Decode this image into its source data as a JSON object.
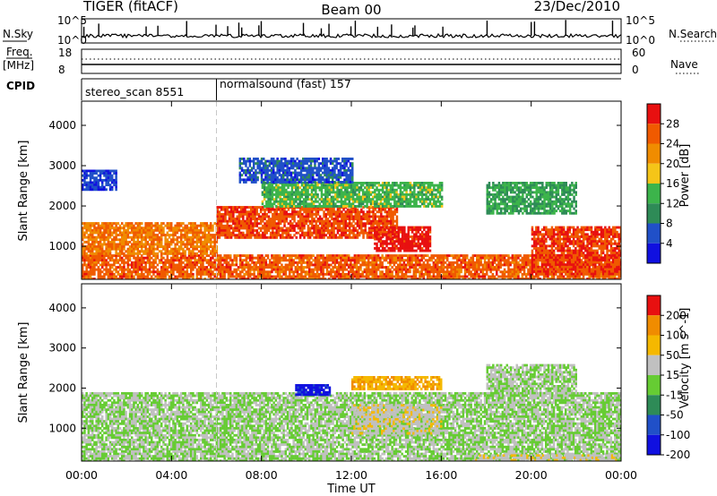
{
  "header": {
    "radar": "TIGER (fitACF)",
    "beam": "Beam 00",
    "date": "23/Dec/2010"
  },
  "strip_labels": {
    "nsky": "N.Sky",
    "nsearch": "N.Search",
    "freq_line1": "Freq.",
    "freq_line2": "[MHz]",
    "nave": "Nave",
    "cpid": "CPID"
  },
  "strip_ticks": {
    "noise_left": [
      "10^5",
      "10^0"
    ],
    "noise_right": [
      "10^5",
      "10^0"
    ],
    "freq_left": [
      "18",
      "8"
    ],
    "nave_right": [
      "60",
      "0"
    ]
  },
  "cpid_segments": [
    {
      "label": "stereo_scan 8551",
      "start_hour": 0,
      "end_hour": 6
    },
    {
      "label": "normalsound (fast) 157",
      "start_hour": 6,
      "end_hour": 24
    }
  ],
  "colors": {
    "power_scale": [
      "#1010e0",
      "#2050c8",
      "#2e8b57",
      "#3cb44b",
      "#f5c518",
      "#f08c00",
      "#f05a00",
      "#e81010"
    ],
    "velocity_scale": [
      "#1010e0",
      "#2050c8",
      "#2e8b57",
      "#66cc33",
      "#c0c0c0",
      "#f5b800",
      "#f08c00",
      "#e81010"
    ],
    "ground_scatter": "#c0c0c0"
  },
  "chart_data": [
    {
      "type": "heatmap",
      "panel": "power",
      "ylabel": "Slant Range [km]",
      "xlim": [
        0,
        24
      ],
      "ylim": [
        180,
        4600
      ],
      "yticks": [
        "1000",
        "2000",
        "3000",
        "4000"
      ],
      "colorbar": {
        "label": "Power [dB]",
        "ticks": [
          "4",
          "8",
          "12",
          "16",
          "20",
          "24",
          "28"
        ],
        "range": [
          0,
          32
        ]
      },
      "regions": [
        {
          "t0": 0,
          "t1": 24,
          "r0": 180,
          "r1": 800,
          "value": 26
        },
        {
          "t0": 0,
          "t1": 6,
          "r0": 800,
          "r1": 1600,
          "value": 24
        },
        {
          "t0": 6,
          "t1": 14,
          "r0": 1200,
          "r1": 2000,
          "value": 27
        },
        {
          "t0": 8,
          "t1": 16,
          "r0": 2000,
          "r1": 2600,
          "value": 14
        },
        {
          "t0": 13,
          "t1": 15.5,
          "r0": 900,
          "r1": 1500,
          "value": 30
        },
        {
          "t0": 7,
          "t1": 12,
          "r0": 2600,
          "r1": 3200,
          "value": 6
        },
        {
          "t0": 18,
          "t1": 22,
          "r0": 1800,
          "r1": 2600,
          "value": 12
        },
        {
          "t0": 20,
          "t1": 24,
          "r0": 300,
          "r1": 1500,
          "value": 28
        },
        {
          "t0": 0,
          "t1": 1.5,
          "r0": 2400,
          "r1": 2900,
          "value": 5
        }
      ]
    },
    {
      "type": "heatmap",
      "panel": "velocity",
      "xlabel": "Time UT",
      "ylabel": "Slant Range [km]",
      "xlim": [
        0,
        24
      ],
      "ylim": [
        180,
        4600
      ],
      "xticks": [
        "00:00",
        "04:00",
        "08:00",
        "12:00",
        "16:00",
        "20:00",
        "00:00"
      ],
      "yticks": [
        "1000",
        "2000",
        "3000",
        "4000"
      ],
      "colorbar": {
        "label": "Velocity [m s^-1]",
        "ticks": [
          "200",
          "100",
          "50",
          "15",
          "-15",
          "-50",
          "-100",
          "-200"
        ],
        "range": [
          -250,
          250
        ]
      },
      "regions": [
        {
          "t0": 0,
          "t1": 24,
          "r0": 180,
          "r1": 1900,
          "value": 0
        },
        {
          "t0": 9.5,
          "t1": 11,
          "r0": 1850,
          "r1": 2100,
          "value": -220
        },
        {
          "t0": 12,
          "t1": 16,
          "r0": 900,
          "r1": 1600,
          "value": 40
        },
        {
          "t0": 12,
          "t1": 16,
          "r0": 2000,
          "r1": 2300,
          "value": 120
        },
        {
          "t0": 17.5,
          "t1": 24,
          "r0": 200,
          "r1": 350,
          "value": 40
        },
        {
          "t0": 18,
          "t1": 22,
          "r0": 1800,
          "r1": 2600,
          "value": 0
        }
      ]
    }
  ]
}
